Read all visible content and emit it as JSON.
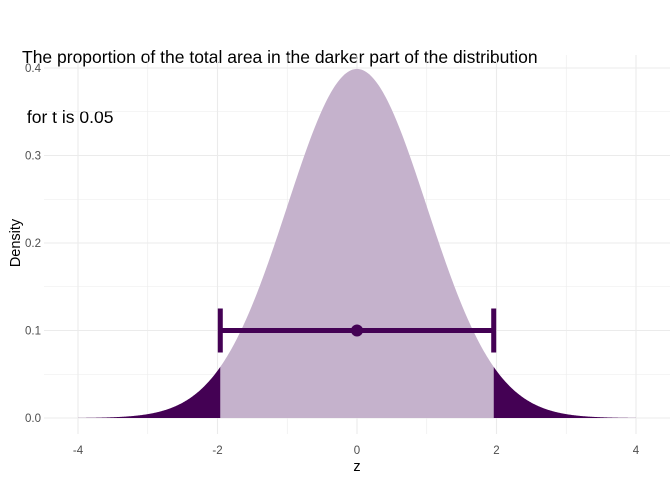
{
  "chart_data": {
    "type": "area",
    "title_lines": [
      "The proportion of the total area in the darker part of the distribution",
      " for t is 0.05"
    ],
    "xlabel": "z",
    "ylabel": "Density",
    "xlim": [
      -4,
      4
    ],
    "ylim": [
      0,
      0.4
    ],
    "x_ticks": [
      -4,
      -2,
      0,
      2,
      4
    ],
    "x_tick_labels": [
      "-4",
      "-2",
      "0",
      "2",
      "4"
    ],
    "y_ticks": [
      0,
      0.1,
      0.2,
      0.3,
      0.4
    ],
    "y_tick_labels": [
      "0.0",
      "0.1",
      "0.2",
      "0.3",
      "0.4"
    ],
    "grid": true,
    "distribution": "standard normal density",
    "critical_values": [
      -1.96,
      1.96
    ],
    "tail_proportion": 0.05,
    "interval": {
      "center": 0,
      "lower": -1.96,
      "upper": 1.96,
      "y": 0.1
    },
    "colors": {
      "center_fill": "#c5b2cc",
      "tail_fill": "#440154",
      "interval": "#440154",
      "grid": "#ebebeb"
    }
  }
}
